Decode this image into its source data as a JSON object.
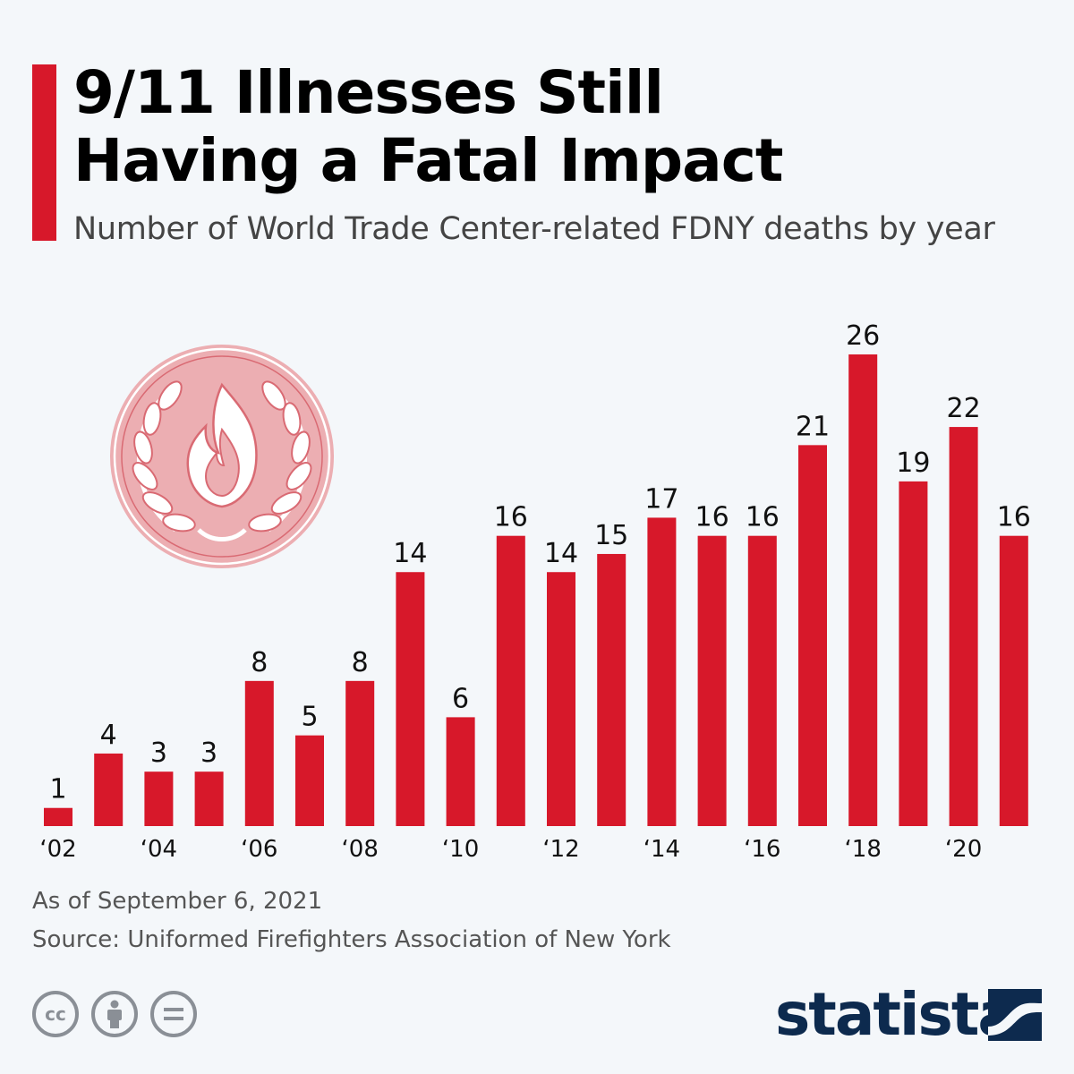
{
  "header": {
    "title_line1": "9/11 Illnesses Still",
    "title_line2": "Having a Fatal Impact",
    "subtitle": "Number of World Trade Center-related FDNY deaths by year"
  },
  "chart_data": {
    "type": "bar",
    "title": "9/11 Illnesses Still Having a Fatal Impact",
    "subtitle": "Number of World Trade Center-related FDNY deaths by year",
    "categories": [
      "2002",
      "2003",
      "2004",
      "2005",
      "2006",
      "2007",
      "2008",
      "2009",
      "2010",
      "2011",
      "2012",
      "2013",
      "2014",
      "2015",
      "2016",
      "2017",
      "2018",
      "2019",
      "2020",
      "2021"
    ],
    "values": [
      1,
      4,
      3,
      3,
      8,
      5,
      8,
      14,
      6,
      16,
      14,
      15,
      17,
      16,
      16,
      21,
      26,
      19,
      22,
      16
    ],
    "tick_labels": [
      "‘02",
      "‘04",
      "‘06",
      "‘08",
      "‘10",
      "‘12",
      "‘14",
      "‘16",
      "‘18",
      "‘20"
    ],
    "tick_every": 2,
    "ylim": [
      0,
      26
    ],
    "grid": false,
    "legend": "none",
    "bar_color": "#d7182a",
    "xlabel": "",
    "ylabel": ""
  },
  "footer": {
    "note": "As of September 6, 2021",
    "source": "Source: Uniformed Firefighters Association of New York",
    "license_icons": [
      "cc-icon",
      "attribution-icon",
      "no-derivatives-icon"
    ],
    "license_cc": "cc",
    "brand": "statista"
  },
  "colors": {
    "accent": "#d7182a",
    "brand": "#0d2a4e",
    "background": "#f4f7fa"
  },
  "illustration": "fdny-memorial-emblem-icon"
}
